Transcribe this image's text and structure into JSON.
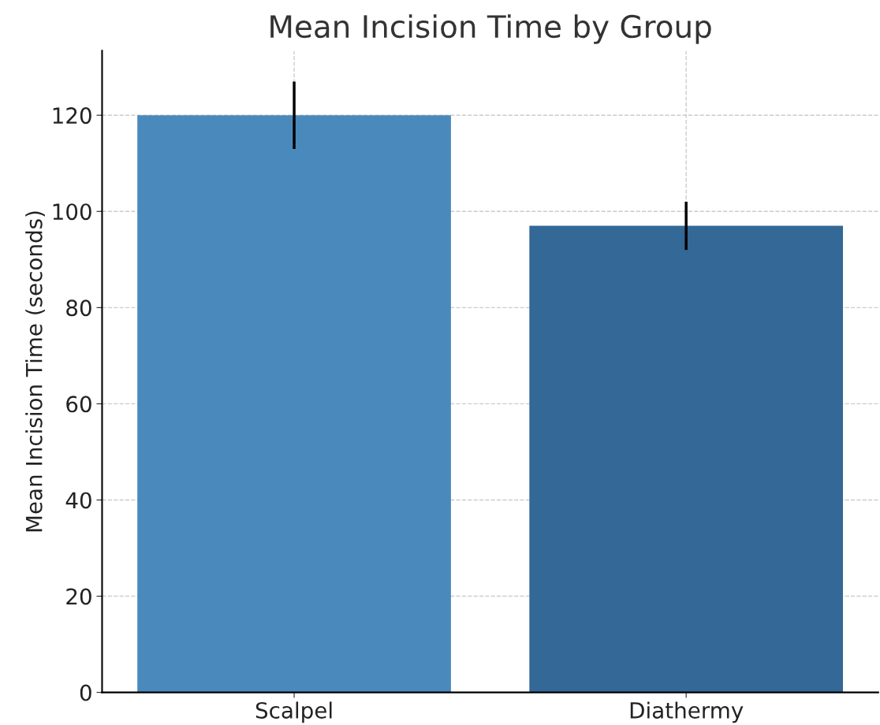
{
  "chart_data": {
    "type": "bar",
    "title": "Mean Incision Time by Group",
    "ylabel": "Mean Incision Time (seconds)",
    "categories": [
      "Scalpel",
      "Diathermy"
    ],
    "values": [
      120,
      97
    ],
    "colors": [
      "#4a89bc",
      "#336897"
    ],
    "errors": [
      7,
      5
    ],
    "ylim": [
      0,
      133.4
    ],
    "yticks": [
      0,
      20,
      40,
      60,
      80,
      100,
      120
    ],
    "grid": true
  }
}
